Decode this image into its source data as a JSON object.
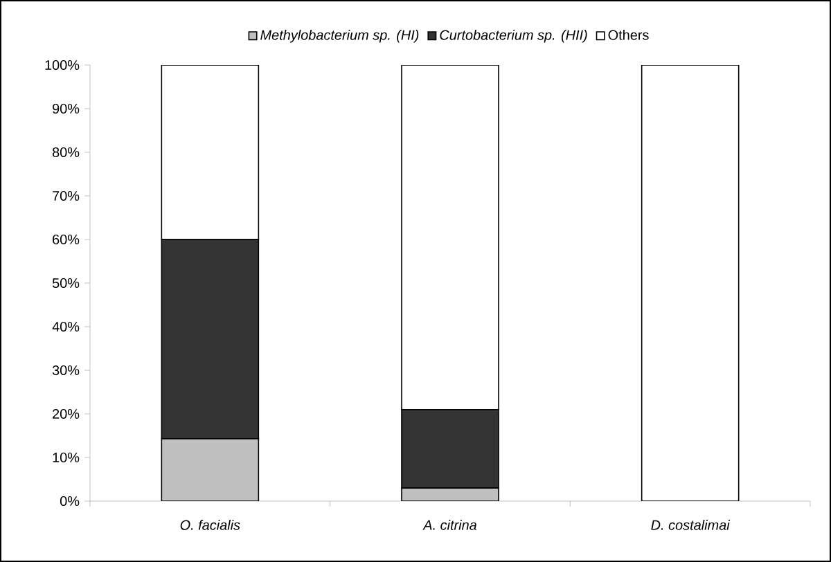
{
  "chart_data": {
    "type": "bar",
    "stacked": true,
    "categories": [
      "O. facialis",
      "A. citrina",
      "D. costalimai"
    ],
    "series": [
      {
        "name": "Methylobacterium sp. (HI)",
        "color": "#c0c0c0",
        "values": [
          14.3,
          3,
          0
        ]
      },
      {
        "name": "Curtobacterium sp. (HII)",
        "color": "#333333",
        "values": [
          45.7,
          18,
          0
        ]
      },
      {
        "name": "Others",
        "color": "#ffffff",
        "values": [
          40,
          79,
          100
        ]
      }
    ],
    "ylim": [
      0,
      100
    ],
    "yticks": [
      {
        "value": 0,
        "label": "0%"
      },
      {
        "value": 10,
        "label": "10%"
      },
      {
        "value": 20,
        "label": "20%"
      },
      {
        "value": 30,
        "label": "30%"
      },
      {
        "value": 40,
        "label": "40%"
      },
      {
        "value": 50,
        "label": "50%"
      },
      {
        "value": 60,
        "label": "60%"
      },
      {
        "value": 70,
        "label": "70%"
      },
      {
        "value": 80,
        "label": "80%"
      },
      {
        "value": 90,
        "label": "90%"
      },
      {
        "value": 100,
        "label": "100%"
      }
    ],
    "legend": "top",
    "grid": false
  }
}
